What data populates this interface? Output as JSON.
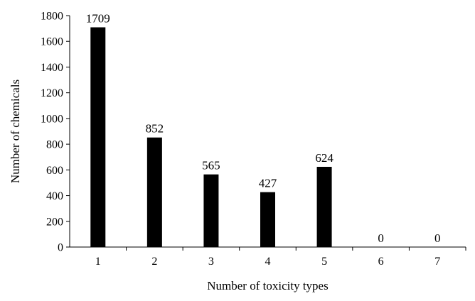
{
  "chart_data": {
    "type": "bar",
    "title": "",
    "xlabel": "Number of toxicity types",
    "ylabel": "Number of chemicals",
    "categories": [
      "1",
      "2",
      "3",
      "4",
      "5",
      "6",
      "7"
    ],
    "values": [
      1709,
      852,
      565,
      427,
      624,
      0,
      0
    ],
    "data_labels": [
      "1709",
      "852",
      "565",
      "427",
      "624",
      "0",
      "0"
    ],
    "yticks": [
      0,
      200,
      400,
      600,
      800,
      1000,
      1200,
      1400,
      1600,
      1800
    ],
    "ytick_labels": [
      "0",
      "200",
      "400",
      "600",
      "800",
      "1000",
      "1200",
      "1400",
      "1600",
      "1800"
    ],
    "ylim": [
      0,
      1800
    ],
    "grid": false,
    "legend": "none",
    "bar_color": "#000000"
  }
}
